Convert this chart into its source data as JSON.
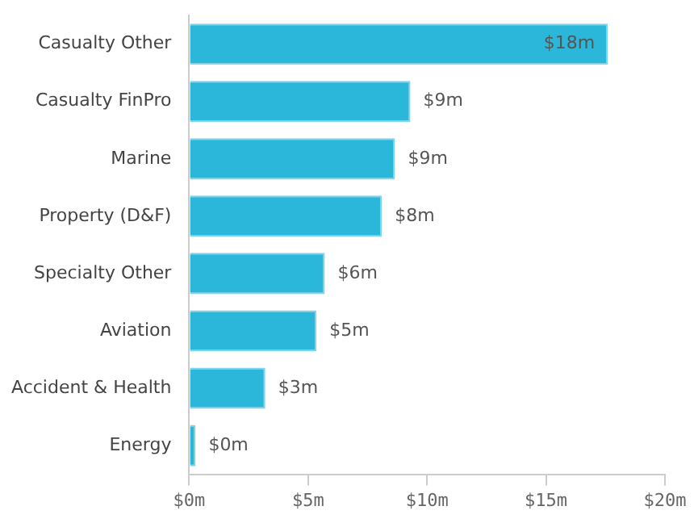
{
  "chart_data": {
    "type": "bar",
    "orientation": "horizontal",
    "categories": [
      "Casualty Other",
      "Casualty FinPro",
      "Marine",
      "Property (D&F)",
      "Specialty Other",
      "Aviation",
      "Accident & Health",
      "Energy"
    ],
    "values": [
      17.6,
      9.3,
      8.65,
      8.1,
      5.7,
      5.35,
      3.2,
      0.27
    ],
    "value_labels": [
      "$18m",
      "$9m",
      "$9m",
      "$8m",
      "$6m",
      "$5m",
      "$3m",
      "$0m"
    ],
    "color": "#2bb7da",
    "xlim": [
      0,
      20
    ],
    "xticks": [
      {
        "value": 0,
        "label": "$0m"
      },
      {
        "value": 5,
        "label": "$5m"
      },
      {
        "value": 10,
        "label": "$10m"
      },
      {
        "value": 15,
        "label": "$15m"
      },
      {
        "value": 20,
        "label": "$20m"
      }
    ],
    "grid": false,
    "legend": false
  }
}
